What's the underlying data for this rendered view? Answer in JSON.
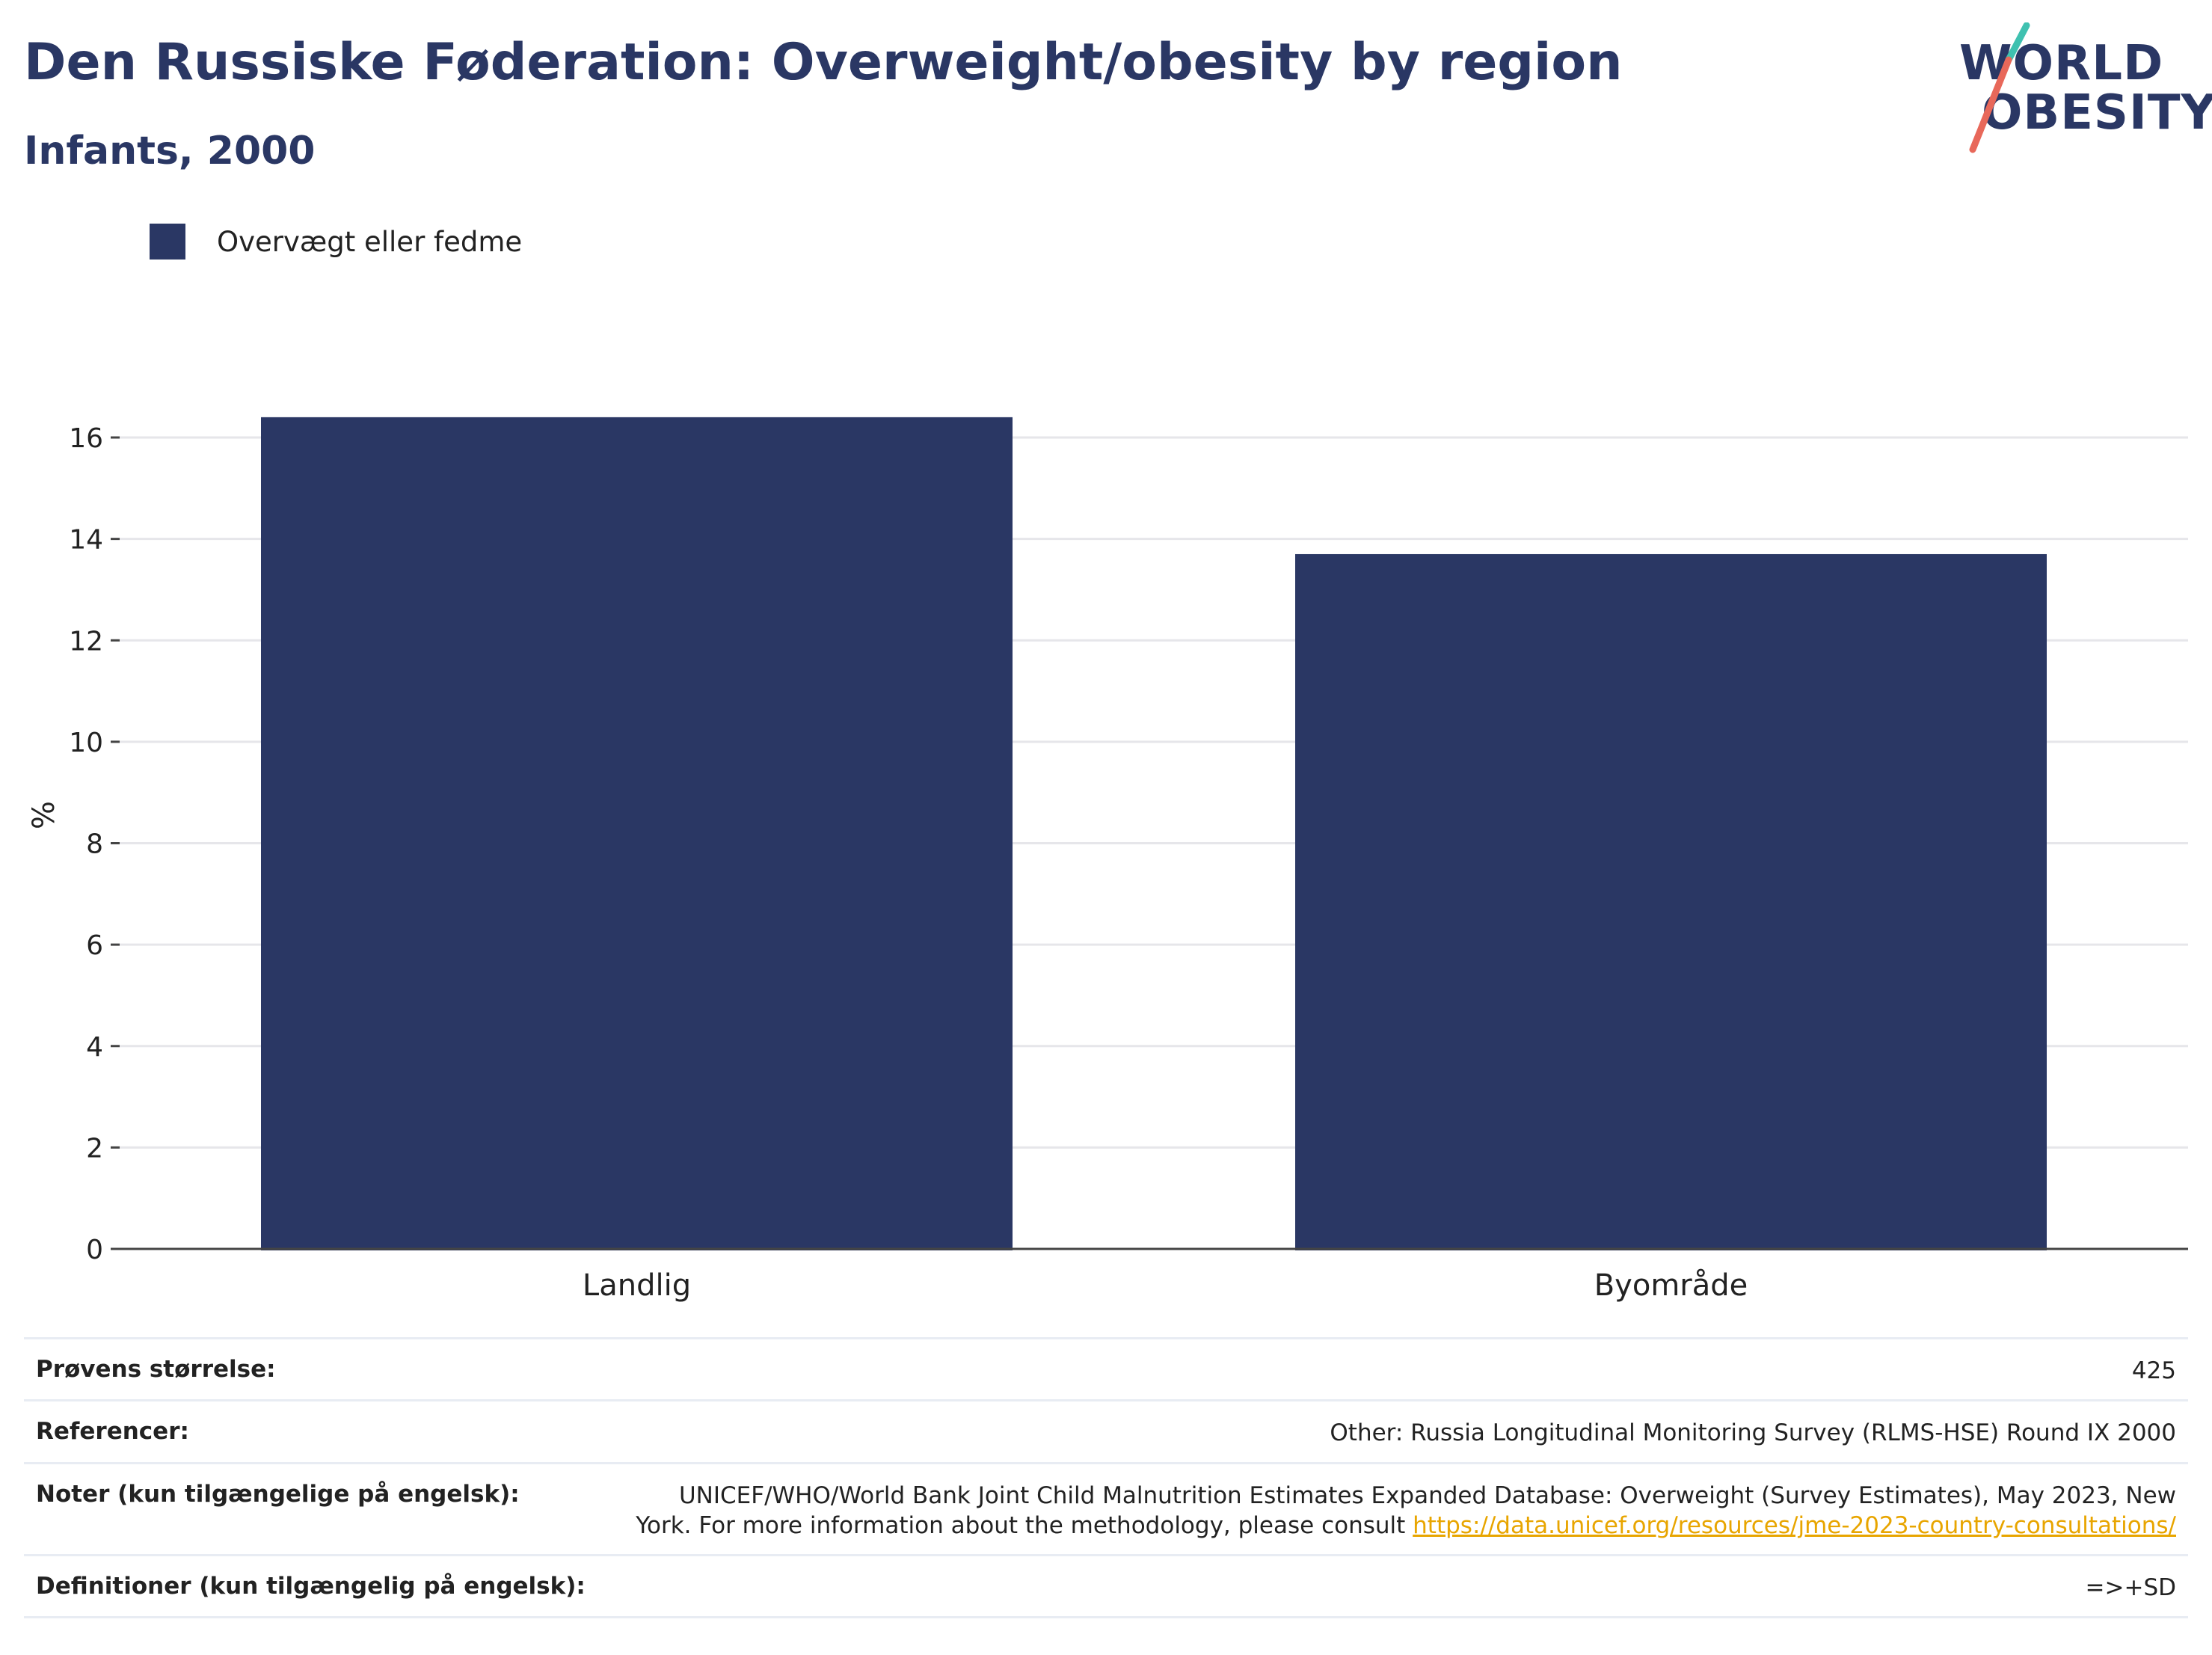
{
  "header": {
    "title": "Den Russiske Føderation: Overweight/obesity by region",
    "subtitle": "Infants, 2000"
  },
  "logo": {
    "line1": "WORLD",
    "line2": "OBESITY",
    "slash_colors": [
      "#3fc1b0",
      "#e8685a"
    ]
  },
  "colors": {
    "bar": "#2a3764",
    "grid": "#e6e6ea",
    "axis": "#444444",
    "link": "#e8a500"
  },
  "chart_data": {
    "type": "bar",
    "categories": [
      "Landlig",
      "Byområde"
    ],
    "series": [
      {
        "name": "Overvægt eller fedme",
        "values": [
          16.4,
          13.7
        ]
      }
    ],
    "ylabel": "%",
    "xlabel": "",
    "ylim": [
      0,
      16.6
    ],
    "yticks": [
      0,
      2,
      4,
      6,
      8,
      10,
      12,
      14,
      16
    ],
    "grid": true,
    "legend": "top-left"
  },
  "footer": {
    "rows": [
      {
        "key": "Prøvens størrelse:",
        "value": "425"
      },
      {
        "key": "Referencer:",
        "value": "Other: Russia Longitudinal Monitoring Survey (RLMS-HSE) Round IX 2000"
      },
      {
        "key": "Noter (kun tilgængelige på engelsk):",
        "value_line1": "UNICEF/WHO/World Bank Joint Child Malnutrition Estimates Expanded Database: Overweight (Survey Estimates), May 2023, New",
        "value_line2": "York. For more information about the methodology, please consult ",
        "link": "https://data.unicef.org/resources/jme-2023-country-consultations/"
      },
      {
        "key": "Definitioner (kun tilgængelig på engelsk):",
        "value": "=>+SD"
      }
    ]
  }
}
